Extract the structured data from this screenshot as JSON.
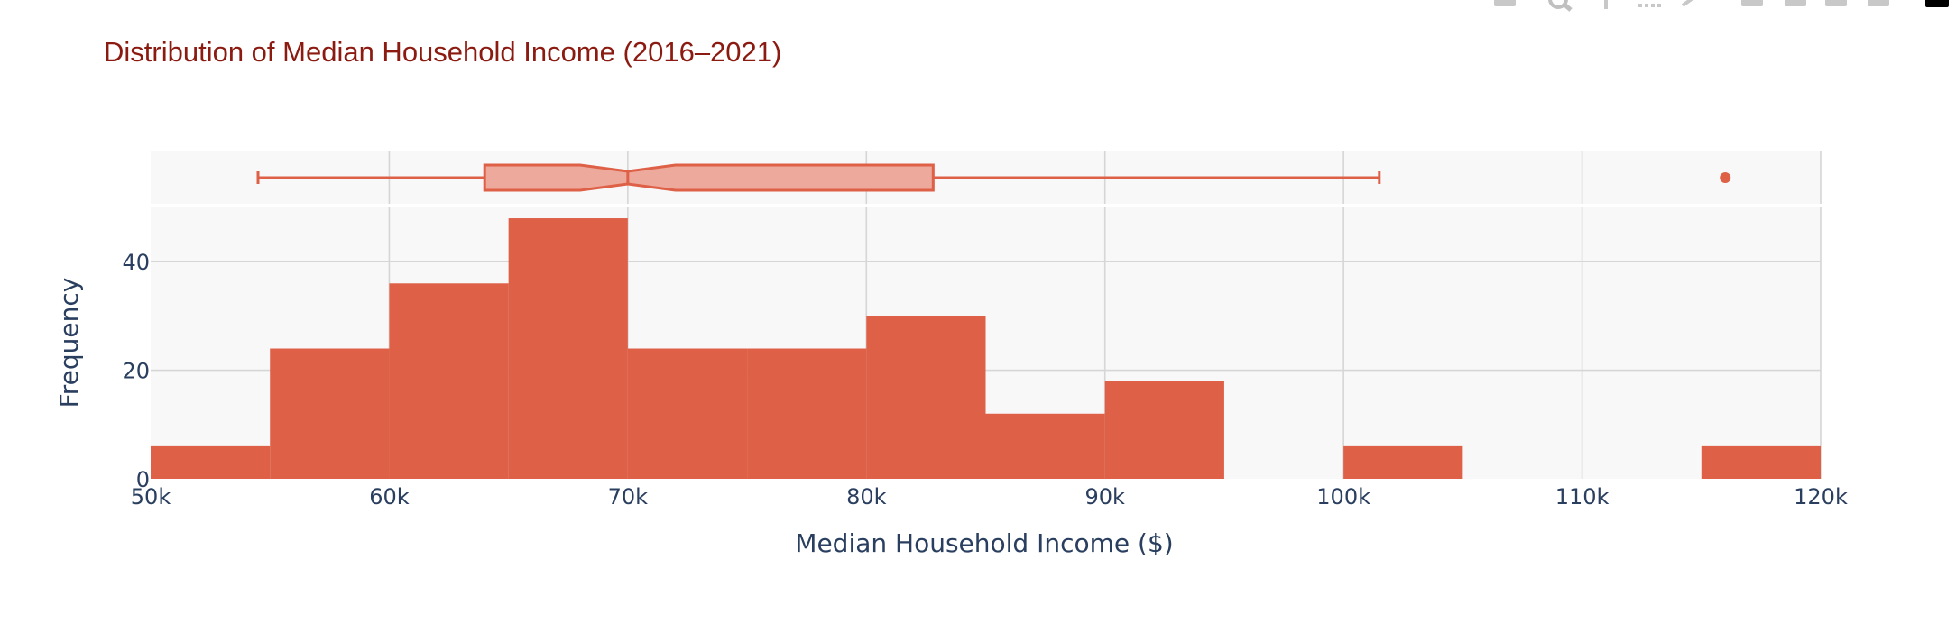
{
  "colors": {
    "bar": "#de6047",
    "box_fill": "#eda99b",
    "box_line": "#de6047",
    "plot_bg": "#f8f8f8",
    "grid": "#d6d6d6",
    "title": "#8b1a10",
    "text": "#2a3f5f"
  },
  "toolbar": {
    "icons": [
      "camera-icon",
      "zoom-icon",
      "pan-icon",
      "box-select-icon",
      "lasso-icon",
      "zoom-in-icon",
      "zoom-out-icon",
      "autoscale-icon",
      "reset-axes-icon",
      "plotly-logo-icon"
    ]
  },
  "chart_data": {
    "type": "histogram",
    "title": "Distribution of Median Household Income (2016–2021)",
    "xlabel": "Median Household Income ($)",
    "ylabel": "Frequency",
    "xlim": [
      50000,
      120000
    ],
    "ylim": [
      0,
      50
    ],
    "x_ticks": [
      50000,
      60000,
      70000,
      80000,
      90000,
      100000,
      110000,
      120000
    ],
    "x_tick_labels": [
      "50k",
      "60k",
      "70k",
      "80k",
      "90k",
      "100k",
      "110k",
      "120k"
    ],
    "y_ticks": [
      0,
      20,
      40
    ],
    "y_tick_labels": [
      "0",
      "20",
      "40"
    ],
    "bin_width": 5000,
    "bins": [
      {
        "start": 50000,
        "end": 55000,
        "count": 6
      },
      {
        "start": 55000,
        "end": 60000,
        "count": 24
      },
      {
        "start": 60000,
        "end": 65000,
        "count": 36
      },
      {
        "start": 65000,
        "end": 70000,
        "count": 48
      },
      {
        "start": 70000,
        "end": 75000,
        "count": 24
      },
      {
        "start": 75000,
        "end": 80000,
        "count": 24
      },
      {
        "start": 80000,
        "end": 85000,
        "count": 30
      },
      {
        "start": 85000,
        "end": 90000,
        "count": 12
      },
      {
        "start": 90000,
        "end": 95000,
        "count": 18
      },
      {
        "start": 95000,
        "end": 100000,
        "count": 0
      },
      {
        "start": 100000,
        "end": 105000,
        "count": 6
      },
      {
        "start": 105000,
        "end": 110000,
        "count": 0
      },
      {
        "start": 110000,
        "end": 115000,
        "count": 0
      },
      {
        "start": 115000,
        "end": 120000,
        "count": 6
      }
    ],
    "marginal_box": {
      "lower_fence": 54500,
      "q1": 64000,
      "median": 70000,
      "q3": 82800,
      "upper_fence": 101500,
      "notch_low": 68000,
      "notch_high": 72000,
      "outliers": [
        116000
      ]
    },
    "grid": true
  }
}
